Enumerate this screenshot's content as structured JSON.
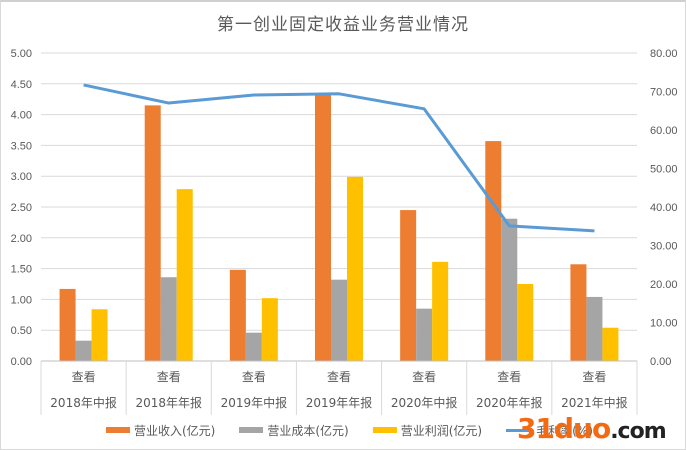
{
  "chart_data": {
    "type": "bar",
    "title": "第一创业固定收益业务营业情况",
    "categories": [
      "2018年中报",
      "2018年年报",
      "2019年中报",
      "2019年年报",
      "2020年中报",
      "2020年年报",
      "2021年中报"
    ],
    "category_links": [
      "查看",
      "查看",
      "查看",
      "查看",
      "查看",
      "查看",
      "查看"
    ],
    "series": [
      {
        "name": "营业收入(亿元)",
        "type": "bar",
        "axis": "left",
        "color": "#ed7d31",
        "values": [
          1.17,
          4.15,
          1.48,
          4.32,
          2.45,
          3.57,
          1.57
        ]
      },
      {
        "name": "营业成本(亿元)",
        "type": "bar",
        "axis": "left",
        "color": "#a5a5a5",
        "values": [
          0.33,
          1.36,
          0.46,
          1.32,
          0.85,
          2.31,
          1.04
        ]
      },
      {
        "name": "营业利润(亿元)",
        "type": "bar",
        "axis": "left",
        "color": "#ffc000",
        "values": [
          0.84,
          2.79,
          1.02,
          2.99,
          1.61,
          1.25,
          0.54
        ]
      },
      {
        "name": "毛利率(%)",
        "type": "line",
        "axis": "right",
        "color": "#5b9bd5",
        "values": [
          71.7,
          67.0,
          69.1,
          69.4,
          65.5,
          35.1,
          33.8
        ]
      }
    ],
    "y_left": {
      "ylim": [
        0,
        5
      ],
      "ticks": [
        "0.00",
        "0.50",
        "1.00",
        "1.50",
        "2.00",
        "2.50",
        "3.00",
        "3.50",
        "4.00",
        "4.50",
        "5.00"
      ]
    },
    "y_right": {
      "ylim": [
        0,
        80
      ],
      "ticks": [
        "0.00",
        "10.00",
        "20.00",
        "30.00",
        "40.00",
        "50.00",
        "60.00",
        "70.00",
        "80.00"
      ]
    },
    "xlabel": "",
    "ylabel": "",
    "grid": true,
    "legend_position": "bottom"
  },
  "watermark": {
    "part1": "31duo",
    "part2": ".com"
  }
}
